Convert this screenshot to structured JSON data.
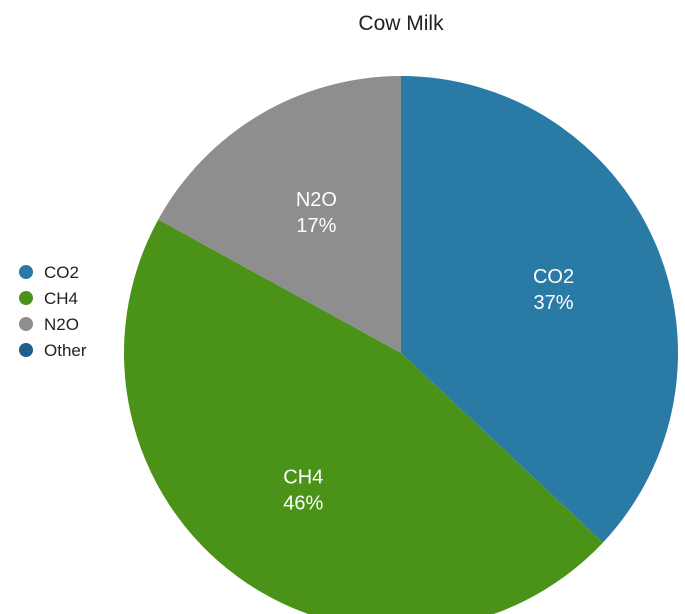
{
  "chart_data": {
    "type": "pie",
    "title": "Cow Milk",
    "slices": [
      {
        "label": "CO2",
        "value": 37,
        "value_label": "37%",
        "color": "#2a7aa6"
      },
      {
        "label": "CH4",
        "value": 46,
        "value_label": "46%",
        "color": "#4a9318"
      },
      {
        "label": "N2O",
        "value": 17,
        "value_label": "17%",
        "color": "#8e8e8e"
      }
    ],
    "legend": {
      "placement": "left",
      "entries": [
        {
          "label": "CO2",
          "color": "#2a7aa6"
        },
        {
          "label": "CH4",
          "color": "#4a9318"
        },
        {
          "label": "N2O",
          "color": "#8e8e8e"
        },
        {
          "label": "Other",
          "color": "#1f5f8a"
        }
      ]
    }
  }
}
